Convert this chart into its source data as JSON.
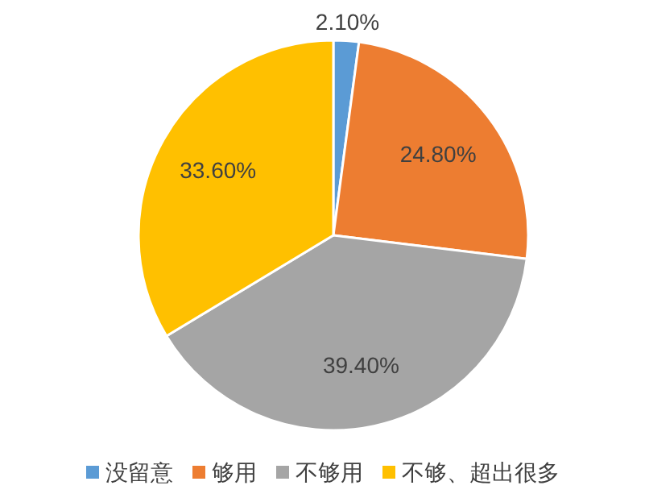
{
  "chart_data": {
    "type": "pie",
    "categories": [
      "没留意",
      "够用",
      "不够用",
      "不够、超出很多"
    ],
    "values": [
      2.1,
      24.8,
      39.4,
      33.6
    ],
    "colors": [
      "#5b9bd5",
      "#ed7d31",
      "#a5a5a5",
      "#ffc000"
    ],
    "value_labels": [
      "2.10%",
      "24.80%",
      "39.40%",
      "33.60%"
    ],
    "legend": "bottom"
  }
}
